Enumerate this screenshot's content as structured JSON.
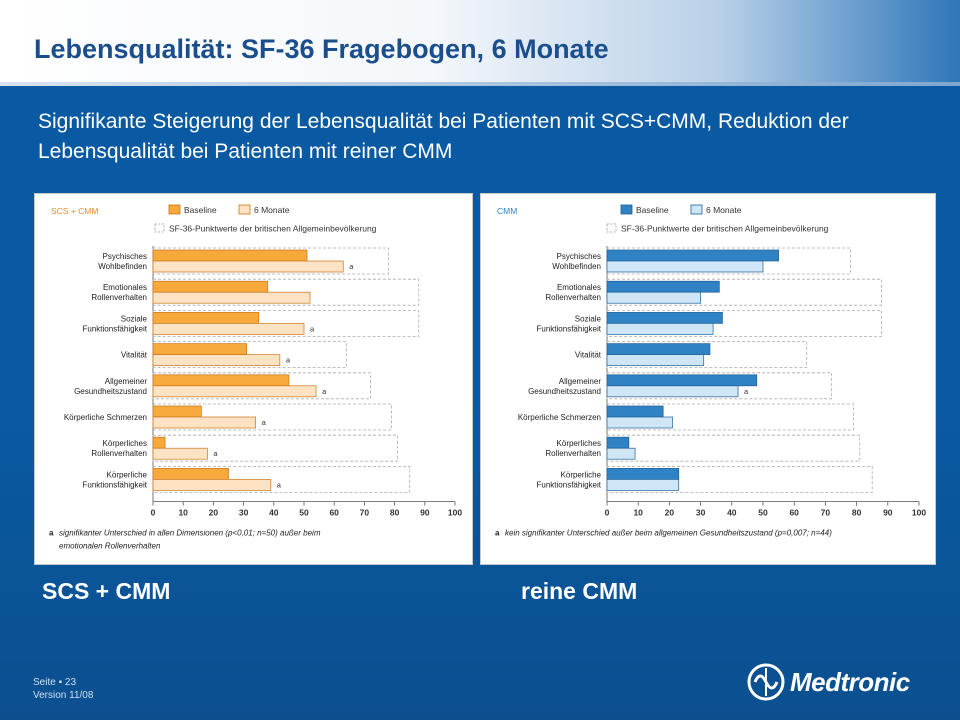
{
  "slide": {
    "title": "Lebensqualität: SF-36 Fragebogen, 6 Monate",
    "subtitle": "Signifikante Steigerung der Lebensqualität bei Patienten mit SCS+CMM, Reduktion der Lebensqualität bei Patienten mit reiner CMM",
    "caption_left": "SCS + CMM",
    "caption_right": "reine CMM",
    "footer_page": "Seite ▪ 23",
    "footer_version": "Version 11/08",
    "logo_text": "Medtronic"
  },
  "colors": {
    "scs_baseline": "#f7a93b",
    "scs_6m": "#fde3c3",
    "cmm_baseline": "#2f82c4",
    "cmm_6m": "#cfe6f6",
    "reference": "#aaaaaa"
  },
  "chart_data": [
    {
      "type": "bar",
      "orientation": "horizontal",
      "group_label": "SCS + CMM",
      "legend": [
        "Baseline",
        "6 Monate"
      ],
      "reference_label": "SF-36-Punktwerte der britischen Allgemeinbevölkerung",
      "categories": [
        [
          "Psychisches",
          "Wohlbefinden"
        ],
        [
          "Emotionales",
          "Rollenverhalten"
        ],
        [
          "Soziale",
          "Funktionsfähigkeit"
        ],
        [
          "Vitalität"
        ],
        [
          "Allgemeiner",
          "Gesundheitszustand"
        ],
        [
          "Körperliche Schmerzen"
        ],
        [
          "Körperliches",
          "Rollenverhalten"
        ],
        [
          "Körperliche",
          "Funktionsfähigkeit"
        ]
      ],
      "series": [
        {
          "name": "Baseline",
          "values": [
            51,
            38,
            35,
            31,
            45,
            16,
            4,
            25
          ]
        },
        {
          "name": "6 Monate",
          "values": [
            63,
            52,
            50,
            42,
            54,
            34,
            18,
            39
          ]
        }
      ],
      "reference": [
        78,
        88,
        88,
        64,
        72,
        79,
        81,
        85
      ],
      "annotations": [
        "a",
        "",
        "a",
        "a",
        "a",
        "a",
        "a",
        "a"
      ],
      "xticks": [
        0,
        10,
        20,
        30,
        40,
        50,
        60,
        70,
        80,
        90,
        100
      ],
      "xlim": [
        0,
        100
      ],
      "footnote_mark": "a",
      "footnote": "signifikanter Unterschied in allen Dimensionen (p<0,01; n=50) außer beim emotionalen Rollenverhalten"
    },
    {
      "type": "bar",
      "orientation": "horizontal",
      "group_label": "CMM",
      "legend": [
        "Baseline",
        "6 Monate"
      ],
      "reference_label": "SF-36-Punktwerte der britischen Allgemeinbevölkerung",
      "categories": [
        [
          "Psychisches",
          "Wohlbefinden"
        ],
        [
          "Emotionales",
          "Rollenverhalten"
        ],
        [
          "Soziale",
          "Funktionsfähigkeit"
        ],
        [
          "Vitalität"
        ],
        [
          "Allgemeiner",
          "Gesundheitszustand"
        ],
        [
          "Körperliche Schmerzen"
        ],
        [
          "Körperliches",
          "Rollenverhalten"
        ],
        [
          "Körperliche",
          "Funktionsfähigkeit"
        ]
      ],
      "series": [
        {
          "name": "Baseline",
          "values": [
            55,
            36,
            37,
            33,
            48,
            18,
            7,
            23
          ]
        },
        {
          "name": "6 Monate",
          "values": [
            50,
            30,
            34,
            31,
            42,
            21,
            9,
            23
          ]
        }
      ],
      "reference": [
        78,
        88,
        88,
        64,
        72,
        79,
        81,
        85
      ],
      "annotations": [
        "",
        "",
        "",
        "",
        "a",
        "",
        "",
        ""
      ],
      "xticks": [
        0,
        10,
        20,
        30,
        40,
        50,
        60,
        70,
        80,
        90,
        100
      ],
      "xlim": [
        0,
        100
      ],
      "footnote_mark": "a",
      "footnote": "kein signifikanter Unterschied außer beim allgemeinen Gesundheitszustand (p=0,007; n=44)"
    }
  ]
}
